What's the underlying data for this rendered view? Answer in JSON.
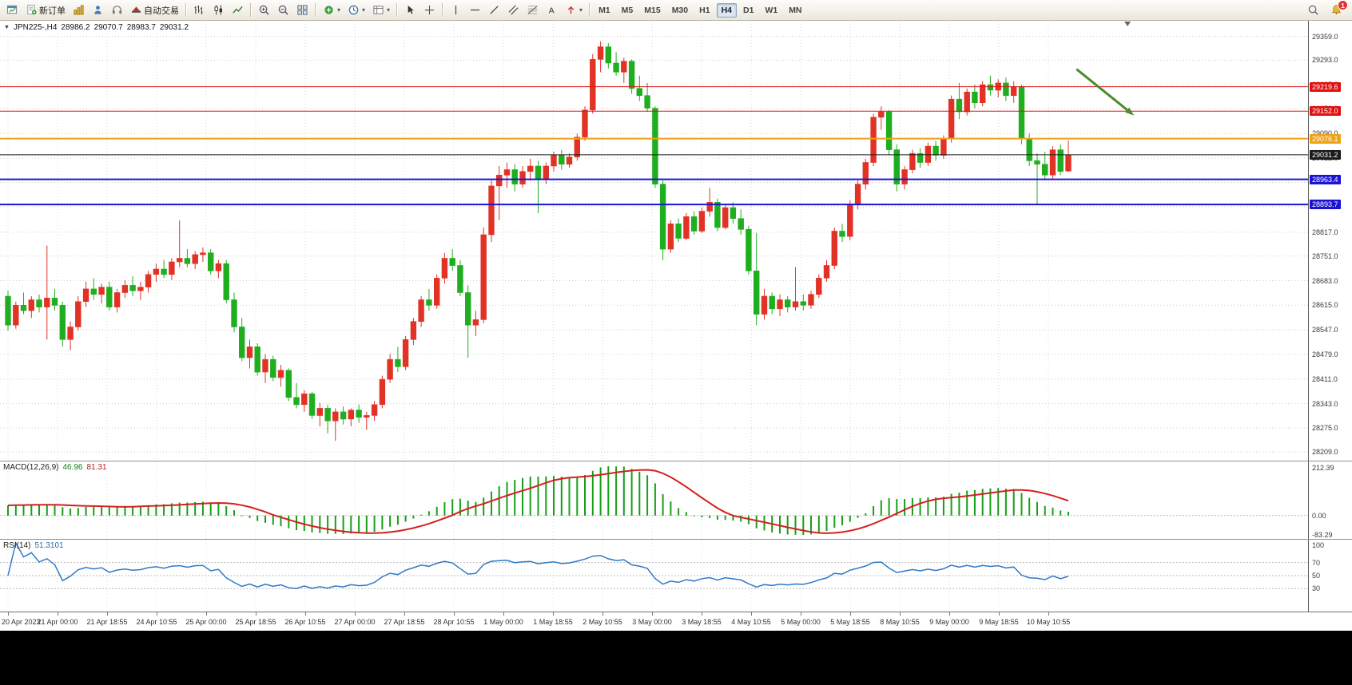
{
  "toolbar": {
    "file_group": [
      {
        "name": "new-chart-button",
        "icon": "chart-plus-icon"
      },
      {
        "name": "new-order-button",
        "icon": "new-order-icon",
        "label": "新订单"
      },
      {
        "name": "market-watch-button",
        "icon": "market-watch-icon"
      },
      {
        "name": "navigator-button",
        "icon": "navigator-icon"
      },
      {
        "name": "terminal-button",
        "icon": "terminal-icon"
      },
      {
        "name": "autotrade-button",
        "icon": "autotrade-icon",
        "label": "自动交易"
      }
    ],
    "chart_type_group": [
      {
        "name": "bars-button",
        "icon": "bar-chart-icon"
      },
      {
        "name": "candles-button",
        "icon": "candlestick-icon"
      },
      {
        "name": "line-chart-button",
        "icon": "line-chart-icon"
      }
    ],
    "zoom_group": [
      {
        "name": "zoom-in-button",
        "icon": "zoom-in-icon"
      },
      {
        "name": "zoom-out-button",
        "icon": "zoom-out-icon"
      },
      {
        "name": "tile-windows-button",
        "icon": "tile-windows-icon"
      }
    ],
    "insert_group": [
      {
        "name": "indicators-button",
        "icon": "indicators-icon",
        "caret": true
      },
      {
        "name": "periods-button",
        "icon": "periods-icon",
        "caret": true
      },
      {
        "name": "templates-button",
        "icon": "templates-icon",
        "caret": true
      }
    ],
    "cursor_group": [
      {
        "name": "cursor-button",
        "icon": "cursor-icon"
      },
      {
        "name": "crosshair-button",
        "icon": "crosshair-icon"
      }
    ],
    "objects_group": [
      {
        "name": "vertical-line-button",
        "icon": "vline-icon"
      },
      {
        "name": "horizontal-line-button",
        "icon": "hline-icon"
      },
      {
        "name": "trendline-button",
        "icon": "trendline-icon"
      },
      {
        "name": "channel-button",
        "icon": "channel-icon"
      },
      {
        "name": "fibonacci-button",
        "icon": "fibonacci-icon"
      },
      {
        "name": "text-button",
        "icon": "text-icon"
      },
      {
        "name": "arrows-button",
        "icon": "arrows-icon",
        "caret": true
      }
    ],
    "timeframes": [
      {
        "label": "M1"
      },
      {
        "label": "M5"
      },
      {
        "label": "M15"
      },
      {
        "label": "M30"
      },
      {
        "label": "H1"
      },
      {
        "label": "H4",
        "active": true
      },
      {
        "label": "D1"
      },
      {
        "label": "W1"
      },
      {
        "label": "MN"
      }
    ],
    "notifications": {
      "badge": "1"
    }
  },
  "chart": {
    "header": {
      "symbol": "JPN225-,H4",
      "open": "28986.2",
      "high": "29070.7",
      "low": "28983.7",
      "close": "29031.2"
    }
  },
  "chart_data": {
    "type": "candlestick",
    "symbol": "JPN225-",
    "timeframe": "H4",
    "up_color": "#e23226",
    "down_color": "#1fae1f",
    "candles": [
      [
        28640,
        28655,
        28545,
        28560
      ],
      [
        28560,
        28625,
        28550,
        28615
      ],
      [
        28615,
        28650,
        28590,
        28600
      ],
      [
        28600,
        28640,
        28580,
        28630
      ],
      [
        28630,
        28645,
        28595,
        28610
      ],
      [
        28610,
        28780,
        28520,
        28635
      ],
      [
        28635,
        28660,
        28600,
        28615
      ],
      [
        28615,
        28625,
        28500,
        28520
      ],
      [
        28520,
        28570,
        28490,
        28555
      ],
      [
        28555,
        28640,
        28545,
        28625
      ],
      [
        28625,
        28680,
        28610,
        28660
      ],
      [
        28660,
        28690,
        28630,
        28645
      ],
      [
        28645,
        28675,
        28620,
        28665
      ],
      [
        28665,
        28680,
        28600,
        28610
      ],
      [
        28610,
        28660,
        28595,
        28650
      ],
      [
        28650,
        28685,
        28635,
        28670
      ],
      [
        28670,
        28695,
        28640,
        28655
      ],
      [
        28655,
        28680,
        28630,
        28665
      ],
      [
        28665,
        28710,
        28650,
        28700
      ],
      [
        28700,
        28730,
        28680,
        28715
      ],
      [
        28715,
        28740,
        28690,
        28700
      ],
      [
        28700,
        28745,
        28685,
        28735
      ],
      [
        28735,
        28850,
        28720,
        28745
      ],
      [
        28745,
        28770,
        28720,
        28730
      ],
      [
        28730,
        28765,
        28715,
        28755
      ],
      [
        28755,
        28775,
        28735,
        28760
      ],
      [
        28760,
        28770,
        28700,
        28710
      ],
      [
        28710,
        28740,
        28690,
        28730
      ],
      [
        28730,
        28740,
        28620,
        28630
      ],
      [
        28630,
        28650,
        28540,
        28555
      ],
      [
        28555,
        28580,
        28460,
        28470
      ],
      [
        28470,
        28520,
        28440,
        28500
      ],
      [
        28500,
        28510,
        28420,
        28430
      ],
      [
        28430,
        28480,
        28400,
        28465
      ],
      [
        28465,
        28475,
        28405,
        28415
      ],
      [
        28415,
        28450,
        28390,
        28435
      ],
      [
        28435,
        28440,
        28350,
        28360
      ],
      [
        28360,
        28400,
        28330,
        28340
      ],
      [
        28340,
        28380,
        28320,
        28370
      ],
      [
        28370,
        28375,
        28300,
        28310
      ],
      [
        28310,
        28345,
        28280,
        28330
      ],
      [
        28330,
        28340,
        28260,
        28295
      ],
      [
        28295,
        28330,
        28240,
        28320
      ],
      [
        28320,
        28335,
        28285,
        28300
      ],
      [
        28300,
        28330,
        28280,
        28325
      ],
      [
        28325,
        28340,
        28290,
        28305
      ],
      [
        28305,
        28320,
        28270,
        28310
      ],
      [
        28310,
        28350,
        28295,
        28340
      ],
      [
        28340,
        28420,
        28330,
        28410
      ],
      [
        28410,
        28480,
        28400,
        28465
      ],
      [
        28465,
        28500,
        28430,
        28445
      ],
      [
        28445,
        28530,
        28435,
        28520
      ],
      [
        28520,
        28580,
        28505,
        28570
      ],
      [
        28570,
        28640,
        28555,
        28630
      ],
      [
        28630,
        28660,
        28600,
        28615
      ],
      [
        28615,
        28700,
        28605,
        28690
      ],
      [
        28690,
        28760,
        28675,
        28745
      ],
      [
        28745,
        28770,
        28710,
        28725
      ],
      [
        28725,
        28740,
        28640,
        28650
      ],
      [
        28650,
        28670,
        28470,
        28560
      ],
      [
        28560,
        28600,
        28530,
        28575
      ],
      [
        28575,
        28830,
        28565,
        28810
      ],
      [
        28810,
        28960,
        28790,
        28945
      ],
      [
        28945,
        29000,
        28850,
        28975
      ],
      [
        28975,
        29010,
        28940,
        28990
      ],
      [
        28990,
        29005,
        28930,
        28950
      ],
      [
        28950,
        29000,
        28940,
        28985
      ],
      [
        28985,
        29020,
        28960,
        29000
      ],
      [
        29000,
        29015,
        28870,
        28965
      ],
      [
        28965,
        29010,
        28950,
        29000
      ],
      [
        29000,
        29040,
        28985,
        29030
      ],
      [
        29030,
        29045,
        28990,
        29005
      ],
      [
        29005,
        29035,
        28995,
        29025
      ],
      [
        29025,
        29090,
        29015,
        29080
      ],
      [
        29080,
        29165,
        29070,
        29155
      ],
      [
        29155,
        29310,
        29145,
        29295
      ],
      [
        29295,
        29345,
        29260,
        29330
      ],
      [
        29330,
        29340,
        29270,
        29285
      ],
      [
        29285,
        29315,
        29250,
        29260
      ],
      [
        29260,
        29300,
        29230,
        29290
      ],
      [
        29290,
        29295,
        29200,
        29215
      ],
      [
        29215,
        29250,
        29180,
        29195
      ],
      [
        29195,
        29230,
        29150,
        29160
      ],
      [
        29160,
        29165,
        28940,
        28950
      ],
      [
        28950,
        28960,
        28740,
        28770
      ],
      [
        28770,
        28850,
        28760,
        28840
      ],
      [
        28840,
        28855,
        28790,
        28800
      ],
      [
        28800,
        28870,
        28795,
        28860
      ],
      [
        28860,
        28875,
        28810,
        28820
      ],
      [
        28820,
        28885,
        28815,
        28875
      ],
      [
        28875,
        28940,
        28860,
        28900
      ],
      [
        28900,
        28910,
        28820,
        28830
      ],
      [
        28830,
        28895,
        28825,
        28885
      ],
      [
        28885,
        28900,
        28840,
        28855
      ],
      [
        28855,
        28880,
        28810,
        28825
      ],
      [
        28825,
        28835,
        28700,
        28710
      ],
      [
        28710,
        28815,
        28560,
        28590
      ],
      [
        28590,
        28660,
        28575,
        28640
      ],
      [
        28640,
        28650,
        28590,
        28605
      ],
      [
        28605,
        28645,
        28585,
        28630
      ],
      [
        28630,
        28640,
        28595,
        28610
      ],
      [
        28610,
        28720,
        28600,
        28625
      ],
      [
        28625,
        28645,
        28600,
        28615
      ],
      [
        28615,
        28655,
        28605,
        28645
      ],
      [
        28645,
        28700,
        28635,
        28690
      ],
      [
        28690,
        28740,
        28680,
        28725
      ],
      [
        28725,
        28830,
        28715,
        28820
      ],
      [
        28820,
        28840,
        28790,
        28805
      ],
      [
        28805,
        28905,
        28795,
        28895
      ],
      [
        28895,
        28960,
        28880,
        28950
      ],
      [
        28950,
        29020,
        28935,
        29010
      ],
      [
        29010,
        29145,
        29000,
        29135
      ],
      [
        29135,
        29165,
        29100,
        29150
      ],
      [
        29150,
        29155,
        29030,
        29045
      ],
      [
        29045,
        29060,
        28930,
        28950
      ],
      [
        28950,
        29000,
        28935,
        28990
      ],
      [
        28990,
        29045,
        28980,
        29035
      ],
      [
        29035,
        29050,
        28995,
        29010
      ],
      [
        29010,
        29065,
        29000,
        29055
      ],
      [
        29055,
        29070,
        29015,
        29030
      ],
      [
        29030,
        29085,
        29020,
        29075
      ],
      [
        29075,
        29195,
        29065,
        29185
      ],
      [
        29185,
        29230,
        29130,
        29150
      ],
      [
        29150,
        29215,
        29140,
        29205
      ],
      [
        29205,
        29225,
        29160,
        29175
      ],
      [
        29175,
        29235,
        29165,
        29225
      ],
      [
        29225,
        29250,
        29195,
        29210
      ],
      [
        29210,
        29240,
        29190,
        29230
      ],
      [
        29230,
        29245,
        29180,
        29195
      ],
      [
        29195,
        29235,
        29175,
        29220
      ],
      [
        29220,
        29225,
        29060,
        29075
      ],
      [
        29075,
        29090,
        29000,
        29015
      ],
      [
        29015,
        29035,
        28893,
        29005
      ],
      [
        29005,
        29040,
        28960,
        28975
      ],
      [
        28975,
        29055,
        28965,
        29045
      ],
      [
        29045,
        29060,
        28975,
        28985
      ],
      [
        28986.2,
        29070.7,
        28983.7,
        29031.2
      ]
    ],
    "y_axis": {
      "max": 29402,
      "min": 28185,
      "gridlines": [
        29359,
        29293,
        29225,
        29159,
        29090,
        29022,
        28955,
        28887,
        28817,
        28751,
        28683,
        28615,
        28547,
        28479,
        28411,
        28343,
        28275,
        28209
      ]
    },
    "price_lines": [
      {
        "price": 29219.6,
        "label": "29219.6",
        "color": "#e01010",
        "width": 1
      },
      {
        "price": 29152.0,
        "label": "29152.0",
        "color": "#e01010",
        "width": 1
      },
      {
        "price": 29076.1,
        "label": "29076.1",
        "color": "#f0a219",
        "width": 2
      },
      {
        "price": 29031.2,
        "label": "29031.2",
        "color": "#1a1a1a",
        "width": 1
      },
      {
        "price": 28963.4,
        "label": "28963.4",
        "color": "#1a14d2",
        "width": 2
      },
      {
        "price": 28893.7,
        "label": "28893.7",
        "color": "#1a14d2",
        "width": 2
      }
    ],
    "x_axis": {
      "labels": [
        "20 Apr 2023",
        "21 Apr 00:00",
        "21 Apr 18:55",
        "24 Apr 10:55",
        "25 Apr 00:00",
        "25 Apr 18:55",
        "26 Apr 10:55",
        "27 Apr 00:00",
        "27 Apr 18:55",
        "28 Apr 10:55",
        "1 May 00:00",
        "1 May 18:55",
        "2 May 10:55",
        "3 May 00:00",
        "3 May 18:55",
        "4 May 10:55",
        "5 May 00:00",
        "5 May 18:55",
        "8 May 10:55",
        "9 May 00:00",
        "9 May 18:55",
        "10 May 10:55"
      ]
    },
    "arrow_annotation": {
      "x1_frac": 0.823,
      "price1": 29268,
      "x2_frac": 0.867,
      "price2": 29140,
      "color": "#4a8c2f"
    },
    "shift_marker": {
      "x_frac": 0.862
    },
    "macd": {
      "title": "MACD(12,26,9)",
      "value_main": "46.96",
      "value_signal": "81.31",
      "axis_labels": [
        "212.39",
        "0.00",
        "-83.29"
      ],
      "max": 212.39,
      "min": -83.29,
      "hist_color": "#17a017",
      "signal_color": "#d42020"
    },
    "rsi": {
      "title": "RSI(14)",
      "value": "51.3101",
      "axis_labels": [
        100,
        70,
        50,
        30
      ],
      "levels": [
        70,
        50,
        30
      ],
      "color": "#2e79c7"
    }
  }
}
